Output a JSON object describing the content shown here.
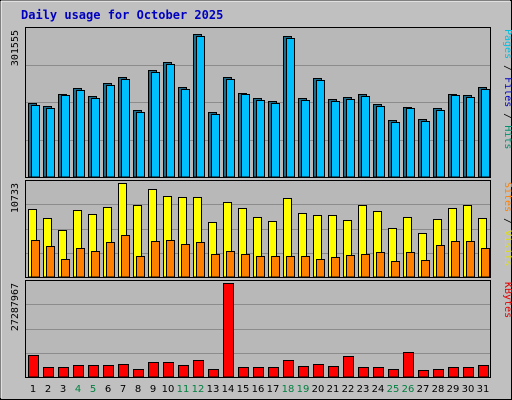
{
  "title": "Daily usage for October 2025",
  "chart_data": {
    "type": "bar",
    "days": [
      "1",
      "2",
      "3",
      "4",
      "5",
      "6",
      "7",
      "8",
      "9",
      "10",
      "11",
      "12",
      "13",
      "14",
      "15",
      "16",
      "17",
      "18",
      "19",
      "20",
      "21",
      "22",
      "23",
      "24",
      "25",
      "26",
      "27",
      "28",
      "29",
      "30",
      "31"
    ],
    "weekend_days": [
      "4",
      "5",
      "11",
      "12",
      "18",
      "19",
      "25",
      "26"
    ],
    "panels": [
      {
        "name": "top",
        "max_label": "301555",
        "ymax": 301555,
        "side_labels": [
          {
            "text": "Pages",
            "color": "#00c0e0"
          },
          {
            "text": "Files",
            "color": "#0000c0"
          },
          {
            "text": "Hits",
            "color": "#009070"
          }
        ],
        "series": [
          {
            "name": "Hits",
            "color": "#1e6b8a",
            "values": [
              153000,
              148000,
              173000,
              184000,
              168000,
              194000,
              208000,
              139000,
              222000,
              239000,
              187000,
              296000,
              134000,
              207000,
              175000,
              164000,
              158000,
              293000,
              163000,
              206000,
              162000,
              165000,
              171000,
              151000,
              119000,
              146000,
              120000,
              142000,
              173000,
              170000,
              186000
            ]
          },
          {
            "name": "Files",
            "color": "#00bfff",
            "values": [
              149000,
              144000,
              169000,
              180000,
              164000,
              190000,
              204000,
              135000,
              218000,
              235000,
              183000,
              292000,
              130000,
              203000,
              171000,
              160000,
              154000,
              289000,
              159000,
              202000,
              158000,
              161000,
              167000,
              147000,
              115000,
              142000,
              116000,
              138000,
              169000,
              166000,
              182000
            ]
          }
        ]
      },
      {
        "name": "middle",
        "max_label": "10733",
        "ymax": 10733,
        "side_labels": [
          {
            "text": "Sites",
            "color": "#ff8000"
          },
          {
            "text": "Visits",
            "color": "#e0e000"
          }
        ],
        "series": [
          {
            "name": "Visits",
            "color": "#ffff00",
            "values": [
              7700,
              6700,
              5400,
              7600,
              7200,
              8000,
              10700,
              8200,
              10000,
              9200,
              9100,
              9100,
              6300,
              8500,
              7900,
              6900,
              6400,
              9000,
              7300,
              7100,
              7100,
              6500,
              8200,
              7500,
              5600,
              6900,
              5000,
              6600,
              7900,
              8200,
              6700
            ]
          },
          {
            "name": "Sites",
            "color": "#ff8000",
            "values": [
              4200,
              3500,
              2100,
              3300,
              3000,
              4000,
              4800,
              2400,
              4100,
              4200,
              3800,
              4000,
              2600,
              3000,
              2600,
              2400,
              2400,
              2400,
              2400,
              2000,
              2300,
              2500,
              2600,
              2800,
              1800,
              2900,
              1900,
              3700,
              4100,
              4100,
              3300
            ]
          }
        ]
      },
      {
        "name": "bottom",
        "max_label": "27287967",
        "ymax": 27287967,
        "side_labels": [
          {
            "text": "KBytes",
            "color": "#e00000"
          }
        ],
        "series": [
          {
            "name": "KBytes",
            "color": "#ff0000",
            "values": [
              6500000,
              2800000,
              2800000,
              3500000,
              3500000,
              3500000,
              3800000,
              2300000,
              4300000,
              4300000,
              3500000,
              4800000,
              2300000,
              27287967,
              2800000,
              2800000,
              2800000,
              4800000,
              3200000,
              3800000,
              3200000,
              6000000,
              3000000,
              3000000,
              2300000,
              7200000,
              2000000,
              2300000,
              2800000,
              2800000,
              3500000
            ]
          }
        ]
      }
    ]
  }
}
